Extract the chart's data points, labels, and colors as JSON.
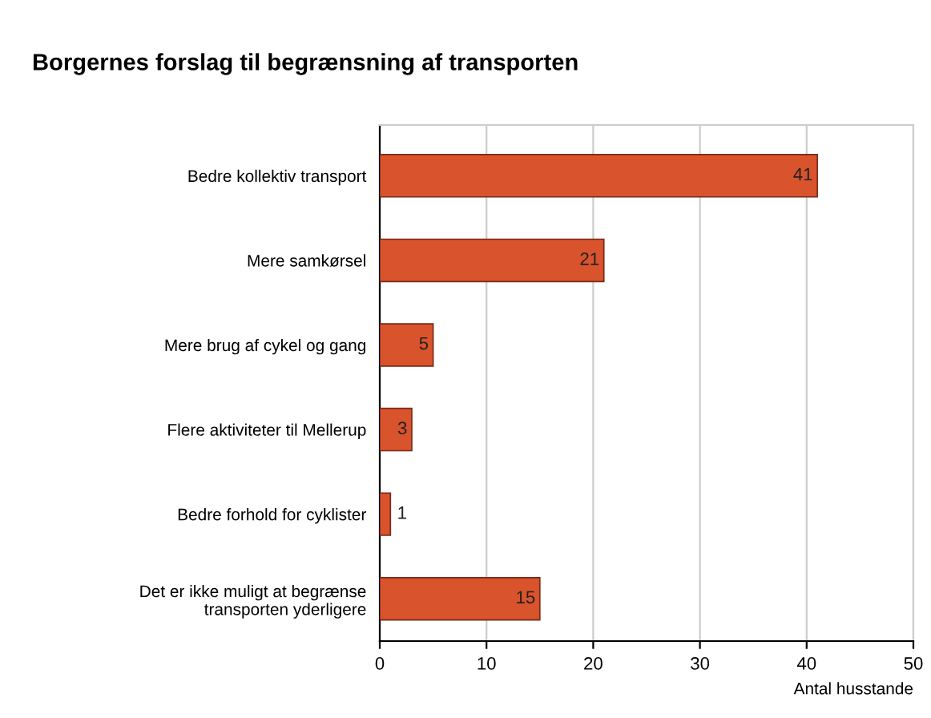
{
  "chart_data": {
    "type": "bar",
    "orientation": "horizontal",
    "title": "Borgernes forslag til begrænsning af transporten",
    "categories": [
      "Bedre kollektiv transport",
      "Mere samkørsel",
      "Mere brug af cykel og gang",
      "Flere aktiviteter til Mellerup",
      "Bedre forhold for cyklister",
      "Det er ikke muligt at begrænse\ntransporten yderligere"
    ],
    "values": [
      41,
      21,
      5,
      3,
      1,
      15
    ],
    "color": "#d9532c",
    "xlim": [
      0,
      50
    ],
    "xticks": [
      0,
      10,
      20,
      30,
      40,
      50
    ],
    "xlabel": "Antal husstande",
    "grid": "x",
    "data_labels": true
  }
}
